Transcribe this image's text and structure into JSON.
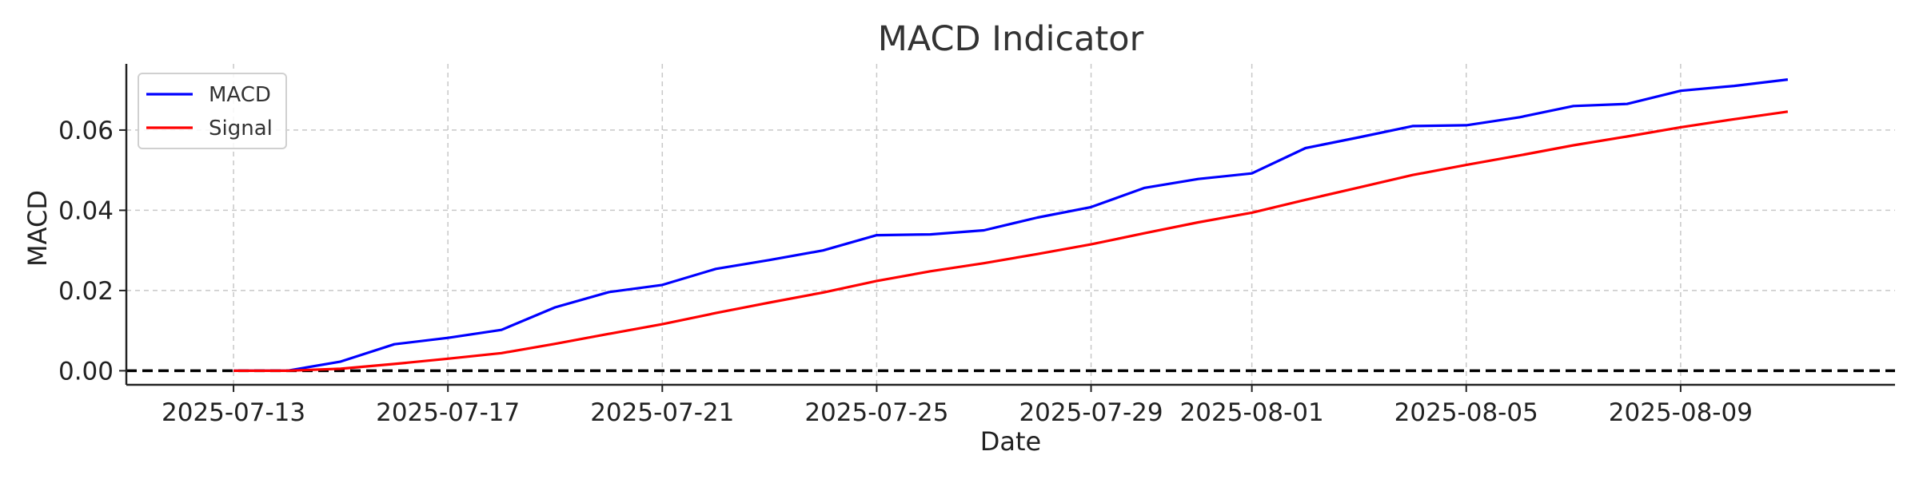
{
  "chart_data": {
    "type": "line",
    "title": "MACD Indicator",
    "xlabel": "Date",
    "ylabel": "MACD",
    "x": [
      "2025-07-13",
      "2025-07-14",
      "2025-07-15",
      "2025-07-16",
      "2025-07-17",
      "2025-07-18",
      "2025-07-19",
      "2025-07-20",
      "2025-07-21",
      "2025-07-22",
      "2025-07-23",
      "2025-07-24",
      "2025-07-25",
      "2025-07-26",
      "2025-07-27",
      "2025-07-28",
      "2025-07-29",
      "2025-07-30",
      "2025-07-31",
      "2025-08-01",
      "2025-08-02",
      "2025-08-03",
      "2025-08-04",
      "2025-08-05",
      "2025-08-06",
      "2025-08-07",
      "2025-08-08",
      "2025-08-09",
      "2025-08-10",
      "2025-08-11"
    ],
    "series": [
      {
        "name": "MACD",
        "color": "#0000ff",
        "values": [
          0.0,
          0.0,
          0.0023,
          0.0066,
          0.0082,
          0.0102,
          0.0158,
          0.0196,
          0.0214,
          0.0254,
          0.0276,
          0.03,
          0.0338,
          0.034,
          0.035,
          0.0382,
          0.0408,
          0.0456,
          0.0478,
          0.0492,
          0.0555,
          0.0582,
          0.061,
          0.0612,
          0.0632,
          0.066,
          0.0665,
          0.0698,
          0.071,
          0.0726
        ]
      },
      {
        "name": "Signal",
        "color": "#ff0000",
        "values": [
          0.0,
          0.0,
          0.0005,
          0.0017,
          0.003,
          0.0044,
          0.0067,
          0.0092,
          0.0116,
          0.0144,
          0.017,
          0.0195,
          0.0224,
          0.0248,
          0.0268,
          0.0291,
          0.0315,
          0.0343,
          0.037,
          0.0394,
          0.0426,
          0.0457,
          0.0488,
          0.0513,
          0.0537,
          0.0562,
          0.0584,
          0.0607,
          0.0627,
          0.0646
        ]
      }
    ],
    "xticks": [
      "2025-07-13",
      "2025-07-17",
      "2025-07-21",
      "2025-07-25",
      "2025-07-29",
      "2025-08-01",
      "2025-08-05",
      "2025-08-09"
    ],
    "yticks": [
      0.0,
      0.02,
      0.04,
      0.06
    ],
    "ytick_labels": [
      "0.00",
      "0.02",
      "0.04",
      "0.06"
    ],
    "xlim": [
      "2025-07-11",
      "2025-08-13"
    ],
    "ylim": [
      -0.0035,
      0.0765
    ],
    "reference_line": {
      "y": 0,
      "color": "#000000",
      "style": "dashed"
    },
    "grid": true,
    "legend_position": "top-left"
  }
}
